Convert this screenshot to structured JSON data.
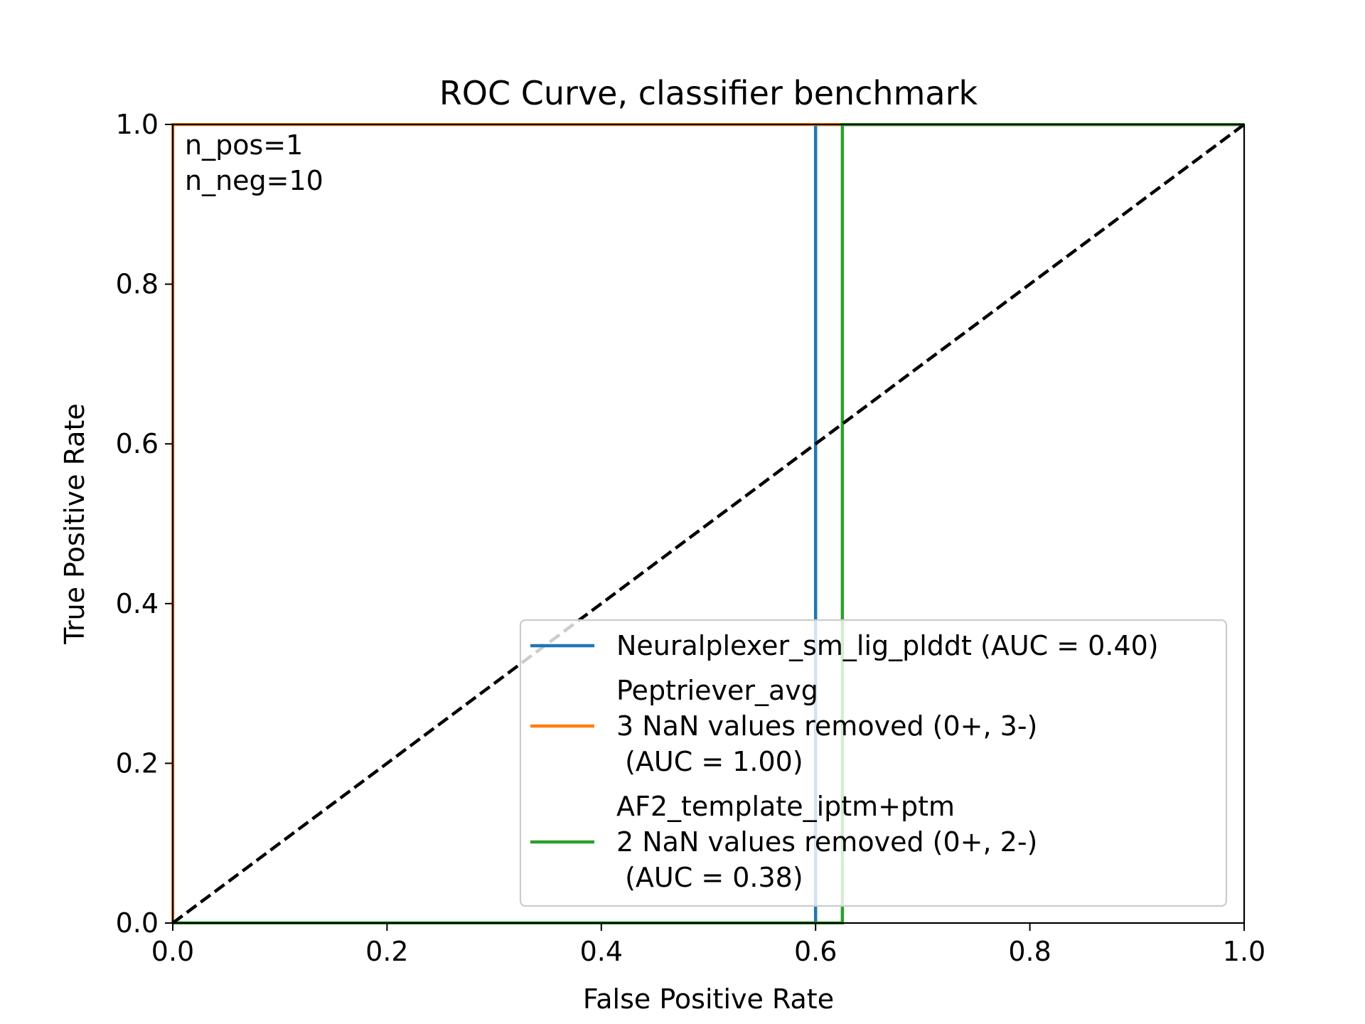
{
  "chart_data": {
    "type": "line",
    "title": "ROC Curve, classifier benchmark",
    "xlabel": "False Positive Rate",
    "ylabel": "True Positive Rate",
    "xlim": [
      0.0,
      1.0
    ],
    "ylim": [
      0.0,
      1.0
    ],
    "xticks": [
      "0.0",
      "0.2",
      "0.4",
      "0.6",
      "0.8",
      "1.0"
    ],
    "yticks": [
      "0.0",
      "0.2",
      "0.4",
      "0.6",
      "0.8",
      "1.0"
    ],
    "grid": false,
    "legend_position": "lower-right",
    "annotation": [
      "n_pos=1",
      "n_neg=10"
    ],
    "series": [
      {
        "name": "Neuralplexer_sm_lig_plddt (AUC = 0.40)",
        "legend_lines": [
          "Neuralplexer_sm_lig_plddt (AUC = 0.40)"
        ],
        "color": "#1f77b4",
        "x": [
          0.0,
          0.6,
          0.6,
          1.0
        ],
        "y": [
          0.0,
          0.0,
          1.0,
          1.0
        ]
      },
      {
        "name": "Peptriever_avg\n3 NaN values removed (0+, 3-)\n (AUC = 1.00)",
        "legend_lines": [
          "Peptriever_avg",
          "3 NaN values removed (0+, 3-)",
          " (AUC = 1.00)"
        ],
        "color": "#ff7f0e",
        "x": [
          0.0,
          0.0,
          1.0
        ],
        "y": [
          0.0,
          1.0,
          1.0
        ]
      },
      {
        "name": "AF2_template_iptm+ptm\n2 NaN values removed (0+, 2-)\n (AUC = 0.38)",
        "legend_lines": [
          "AF2_template_iptm+ptm",
          "2 NaN values removed (0+, 2-)",
          " (AUC = 0.38)"
        ],
        "color": "#2ca02c",
        "x": [
          0.0,
          0.625,
          0.625,
          1.0
        ],
        "y": [
          0.0,
          0.0,
          1.0,
          1.0
        ]
      }
    ],
    "reference_line": {
      "color": "#000000",
      "style": "dashed",
      "x": [
        0.0,
        1.0
      ],
      "y": [
        0.0,
        1.0
      ]
    }
  }
}
